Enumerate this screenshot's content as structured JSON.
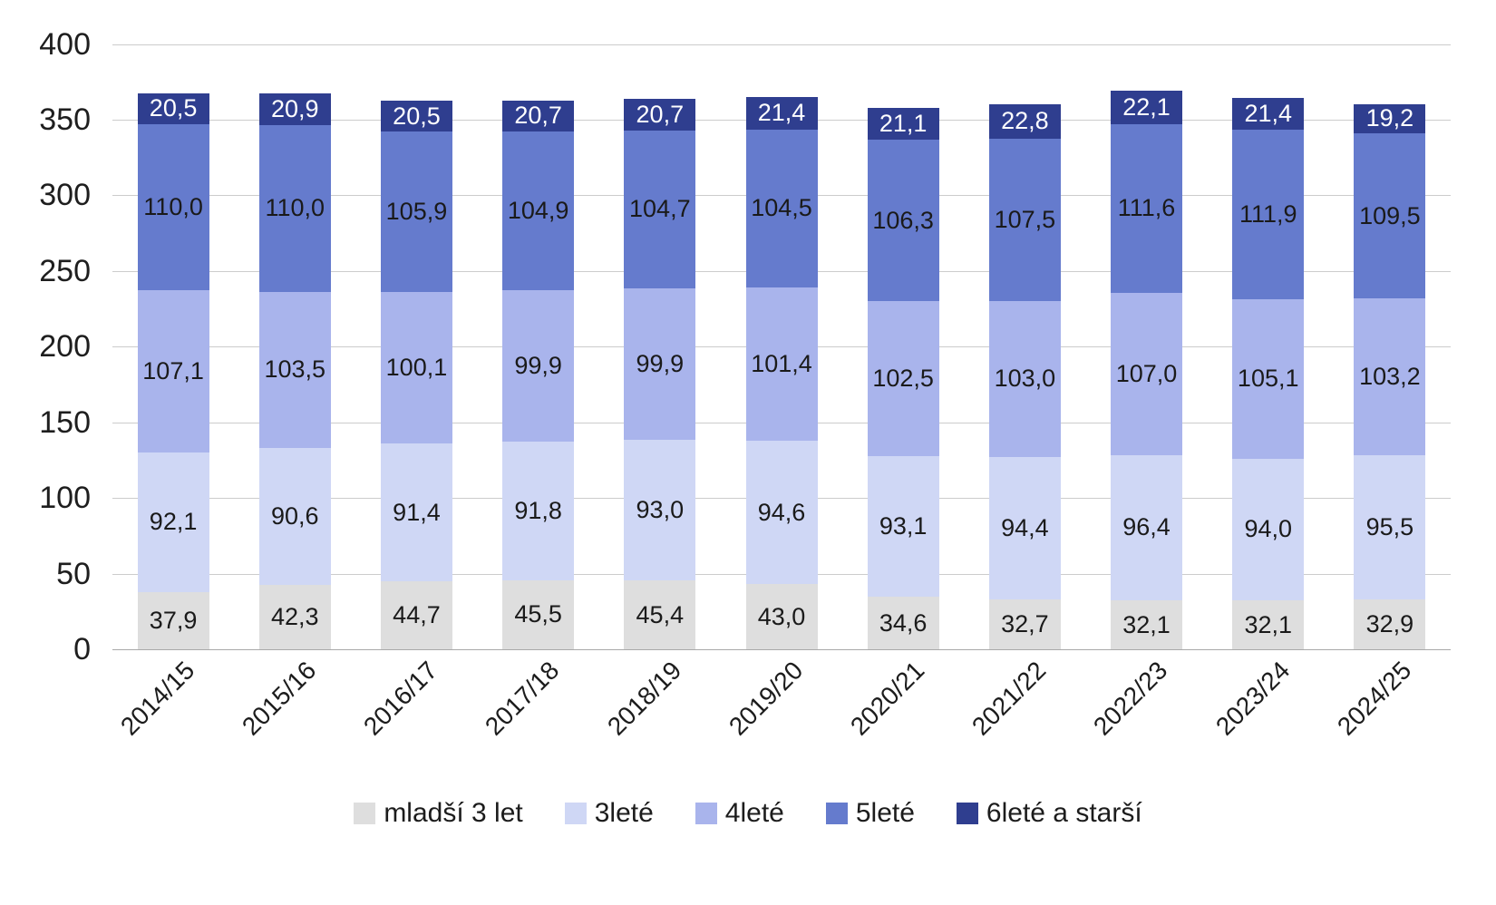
{
  "chart_data": {
    "type": "bar",
    "stacked": true,
    "title": "",
    "xlabel": "",
    "ylabel": "",
    "grid": true,
    "legend_position": "bottom",
    "value_format": "one-decimal-comma",
    "ylim": [
      0,
      400
    ],
    "y_ticks": [
      0,
      50,
      100,
      150,
      200,
      250,
      300,
      350,
      400
    ],
    "categories": [
      "2014/15",
      "2015/16",
      "2016/17",
      "2017/18",
      "2018/19",
      "2019/20",
      "2020/21",
      "2021/22",
      "2022/23",
      "2023/24",
      "2024/25"
    ],
    "series": [
      {
        "name": "mladší 3 let",
        "color": "#dedede",
        "label_color": "#1a1a1a",
        "values": [
          37.9,
          42.3,
          44.7,
          45.5,
          45.4,
          43.0,
          34.6,
          32.7,
          32.1,
          32.1,
          32.9
        ]
      },
      {
        "name": "3leté",
        "color": "#cfd7f5",
        "label_color": "#1a1a1a",
        "values": [
          92.1,
          90.6,
          91.4,
          91.8,
          93.0,
          94.6,
          93.1,
          94.4,
          96.4,
          94.0,
          95.5
        ]
      },
      {
        "name": "4leté",
        "color": "#a9b4ec",
        "label_color": "#1a1a1a",
        "values": [
          107.1,
          103.5,
          100.1,
          99.9,
          99.9,
          101.4,
          102.5,
          103.0,
          107.0,
          105.1,
          103.2
        ]
      },
      {
        "name": "5leté",
        "color": "#657bcd",
        "label_color": "#1a1a1a",
        "values": [
          110.0,
          110.0,
          105.9,
          104.9,
          104.7,
          104.5,
          106.3,
          107.5,
          111.6,
          111.9,
          109.5
        ]
      },
      {
        "name": "6leté a starší",
        "color": "#2f3e8f",
        "label_color": "#ffffff",
        "values": [
          20.5,
          20.9,
          20.5,
          20.7,
          20.7,
          21.4,
          21.1,
          22.8,
          22.1,
          21.4,
          19.2
        ]
      }
    ]
  }
}
